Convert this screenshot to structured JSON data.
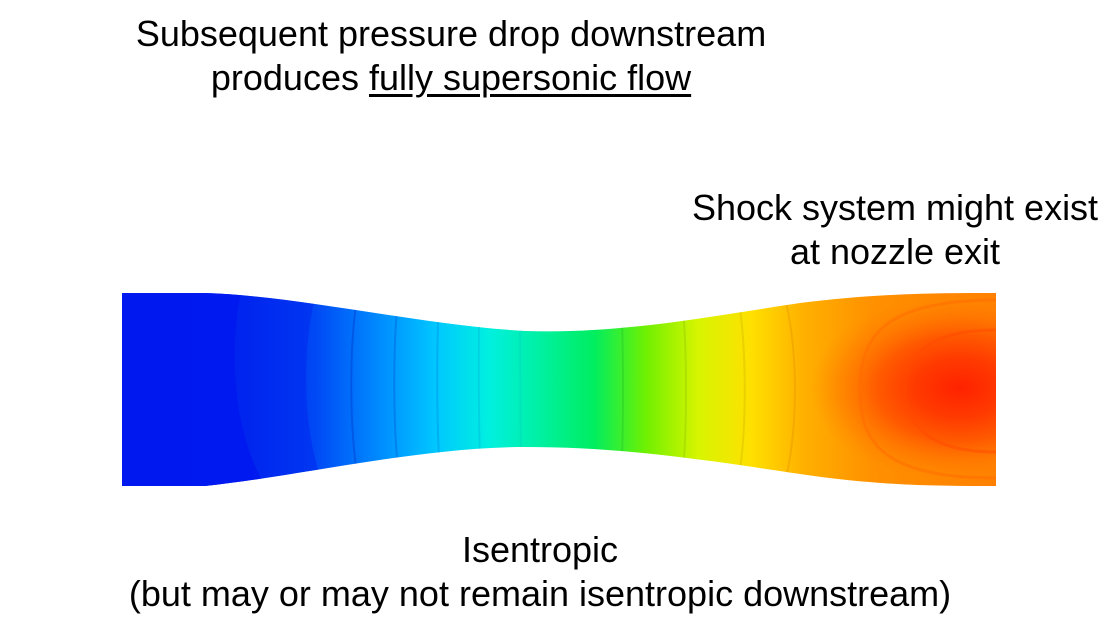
{
  "title": {
    "line1": "Subsequent pressure drop downstream",
    "line2_prefix": "produces ",
    "line2_emphasis": "fully supersonic flow"
  },
  "annotation_right": {
    "line1": "Shock system might exist",
    "line2": "at nozzle exit"
  },
  "annotation_bottom": {
    "line1": "Isentropic",
    "line2": "(but may or may not remain isentropic downstream)"
  },
  "colors": {
    "inlet": "#0018f0",
    "throat": "#00ee60",
    "exit_core": "#ff2a00",
    "exit_wall": "#ff9000"
  }
}
